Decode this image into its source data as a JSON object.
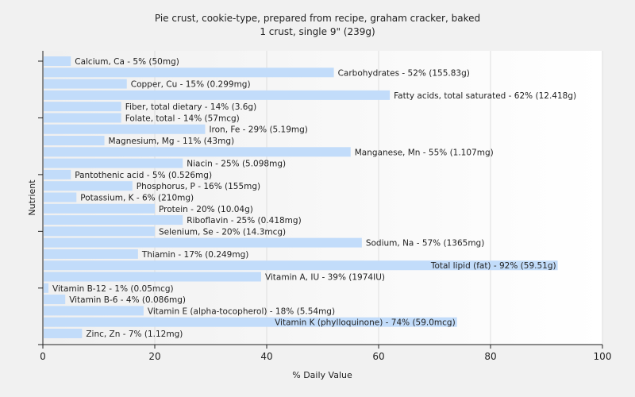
{
  "chart_data": {
    "type": "bar",
    "orientation": "horizontal",
    "title": "Pie crust, cookie-type, prepared from recipe, graham cracker, baked",
    "subtitle": "1 crust, single 9\" (239g)",
    "xlabel": "% Daily Value",
    "ylabel": "Nutrient",
    "xlim": [
      0,
      100
    ],
    "xticks": [
      0,
      20,
      40,
      60,
      80,
      100
    ],
    "grid": true,
    "bar_color": "#c2dcfa",
    "categories": [
      "Calcium, Ca",
      "Carbohydrates",
      "Copper, Cu",
      "Fatty acids, total saturated",
      "Fiber, total dietary",
      "Folate, total",
      "Iron, Fe",
      "Magnesium, Mg",
      "Manganese, Mn",
      "Niacin",
      "Pantothenic acid",
      "Phosphorus, P",
      "Potassium, K",
      "Protein",
      "Riboflavin",
      "Selenium, Se",
      "Sodium, Na",
      "Thiamin",
      "Total lipid (fat)",
      "Vitamin A, IU",
      "Vitamin B-12",
      "Vitamin B-6",
      "Vitamin E (alpha-tocopherol)",
      "Vitamin K (phylloquinone)",
      "Zinc, Zn"
    ],
    "values": [
      5,
      52,
      15,
      62,
      14,
      14,
      29,
      11,
      55,
      25,
      5,
      16,
      6,
      20,
      25,
      20,
      57,
      17,
      92,
      39,
      1,
      4,
      18,
      74,
      7
    ],
    "amounts": [
      "50mg",
      "155.83g",
      "0.299mg",
      "12.418g",
      "3.6g",
      "57mcg",
      "5.19mg",
      "43mg",
      "1.107mg",
      "5.098mg",
      "0.526mg",
      "155mg",
      "210mg",
      "10.04g",
      "0.418mg",
      "14.3mcg",
      "1365mg",
      "0.249mg",
      "59.51g",
      "1974IU",
      "0.05mcg",
      "0.086mg",
      "5.54mg",
      "59.0mcg",
      "1.12mg"
    ],
    "labels": [
      "Calcium, Ca - 5% (50mg)",
      "Carbohydrates - 52% (155.83g)",
      "Copper, Cu - 15% (0.299mg)",
      "Fatty acids, total saturated - 62% (12.418g)",
      "Fiber, total dietary - 14% (3.6g)",
      "Folate, total - 14% (57mcg)",
      "Iron, Fe - 29% (5.19mg)",
      "Magnesium, Mg - 11% (43mg)",
      "Manganese, Mn - 55% (1.107mg)",
      "Niacin - 25% (5.098mg)",
      "Pantothenic acid - 5% (0.526mg)",
      "Phosphorus, P - 16% (155mg)",
      "Potassium, K - 6% (210mg)",
      "Protein - 20% (10.04g)",
      "Riboflavin - 25% (0.418mg)",
      "Selenium, Se - 20% (14.3mcg)",
      "Sodium, Na - 57% (1365mg)",
      "Thiamin - 17% (0.249mg)",
      "Total lipid (fat) - 92% (59.51g)",
      "Vitamin A, IU - 39% (1974IU)",
      "Vitamin B-12 - 1% (0.05mcg)",
      "Vitamin B-6 - 4% (0.086mg)",
      "Vitamin E (alpha-tocopherol) - 18% (5.54mg)",
      "Vitamin K (phylloquinone) - 74% (59.0mcg)",
      "Zinc, Zn - 7% (1.12mg)"
    ]
  }
}
